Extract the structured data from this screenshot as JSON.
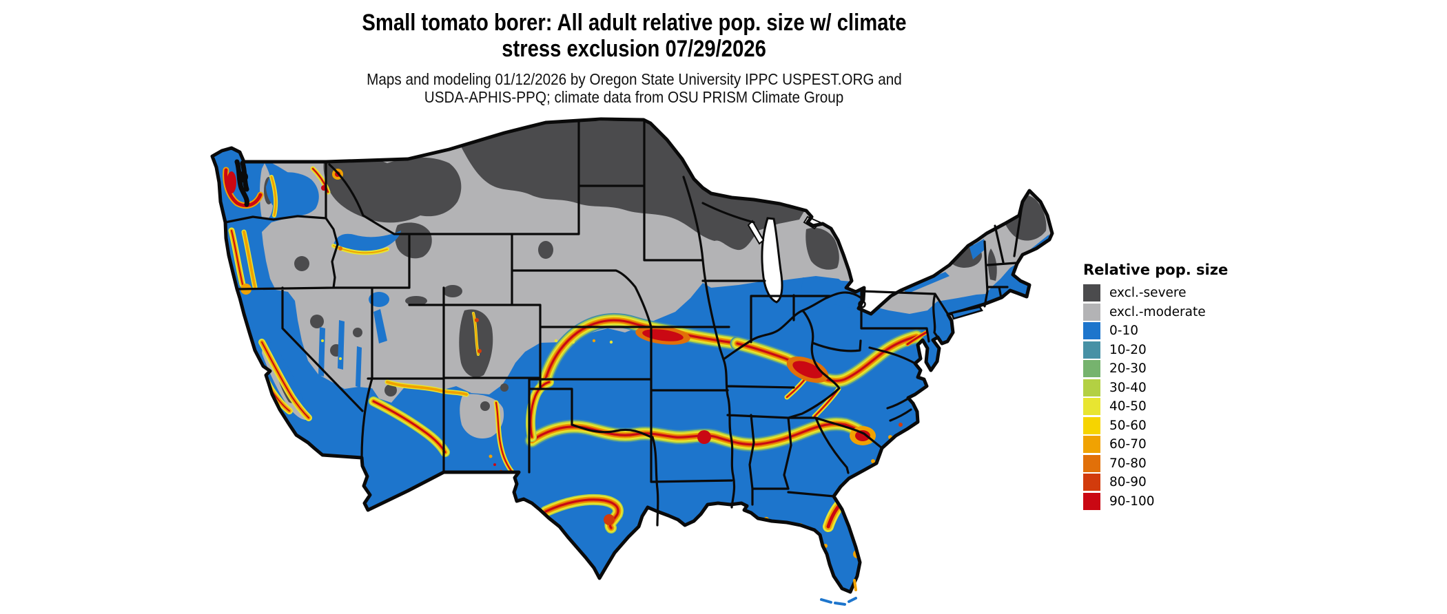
{
  "header": {
    "title_line1": "Small tomato borer: All adult relative pop. size w/ climate",
    "title_line2": "stress exclusion 07/29/2026",
    "subtitle_line1": "Maps and modeling 01/12/2026 by Oregon State University IPPC USPEST.ORG and",
    "subtitle_line2": "USDA-APHIS-PPQ; climate data from OSU PRISM Climate Group"
  },
  "legend": {
    "title": "Relative pop. size",
    "items": [
      {
        "label": "excl.-severe",
        "color": "#4b4b4d"
      },
      {
        "label": "excl.-moderate",
        "color": "#b3b3b5"
      },
      {
        "label": "0-10",
        "color": "#1d75cc"
      },
      {
        "label": "10-20",
        "color": "#4791a5"
      },
      {
        "label": "20-30",
        "color": "#76b36e"
      },
      {
        "label": "30-40",
        "color": "#b3d043"
      },
      {
        "label": "40-50",
        "color": "#e8e531"
      },
      {
        "label": "50-60",
        "color": "#f6d400"
      },
      {
        "label": "60-70",
        "color": "#f0a202"
      },
      {
        "label": "70-80",
        "color": "#e17009"
      },
      {
        "label": "80-90",
        "color": "#d23b0c"
      },
      {
        "label": "90-100",
        "color": "#ca0813"
      }
    ]
  },
  "map": {
    "region": "Contiguous United States",
    "base_color": "#1d75cc",
    "excluded_severe_color": "#4b4b4d",
    "excluded_moderate_color": "#b3b3b5",
    "border_color": "#000000",
    "water_color": "#ffffff"
  }
}
